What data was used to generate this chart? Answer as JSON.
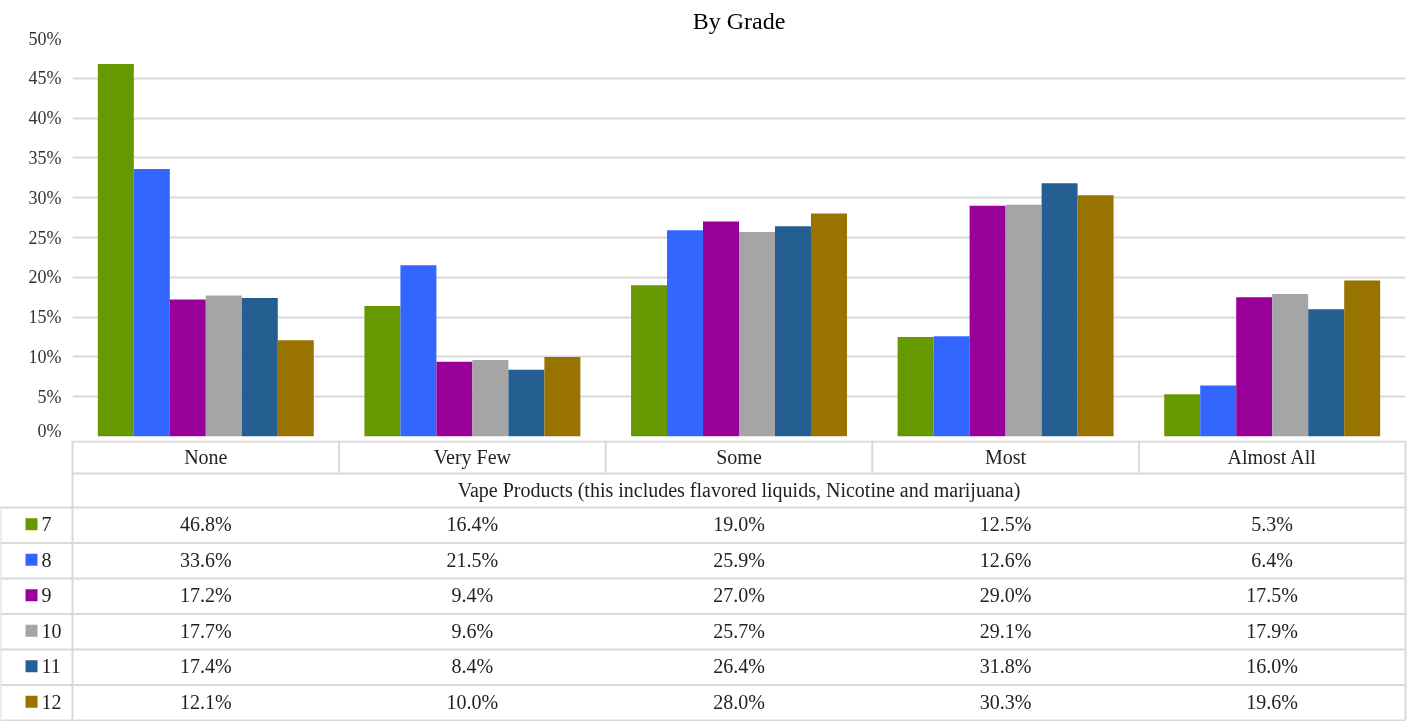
{
  "chart_data": {
    "type": "bar",
    "title": "By Grade",
    "xlabel": "Vape Products (this includes flavored liquids, Nicotine and marijuana)",
    "categories": [
      "None",
      "Very Few",
      "Some",
      "Most",
      "Almost All"
    ],
    "series": [
      {
        "name": "7",
        "color": "#669900",
        "values": [
          46.8,
          16.4,
          19.0,
          12.5,
          5.3
        ],
        "value_labels": [
          "46.8%",
          "16.4%",
          "19.0%",
          "12.5%",
          "5.3%"
        ]
      },
      {
        "name": "8",
        "color": "#3366ff",
        "values": [
          33.6,
          21.5,
          25.9,
          12.6,
          6.4
        ],
        "value_labels": [
          "33.6%",
          "21.5%",
          "25.9%",
          "12.6%",
          "6.4%"
        ]
      },
      {
        "name": "9",
        "color": "#990099",
        "values": [
          17.2,
          9.4,
          27.0,
          29.0,
          17.5
        ],
        "value_labels": [
          "17.2%",
          "9.4%",
          "27.0%",
          "29.0%",
          "17.5%"
        ]
      },
      {
        "name": "10",
        "color": "#a5a5a5",
        "values": [
          17.7,
          9.6,
          25.7,
          29.1,
          17.9
        ],
        "value_labels": [
          "17.7%",
          "9.6%",
          "25.7%",
          "29.1%",
          "17.9%"
        ]
      },
      {
        "name": "11",
        "color": "#255e91",
        "values": [
          17.4,
          8.4,
          26.4,
          31.8,
          16.0
        ],
        "value_labels": [
          "17.4%",
          "8.4%",
          "26.4%",
          "31.8%",
          "16.0%"
        ]
      },
      {
        "name": "12",
        "color": "#997300",
        "values": [
          12.1,
          10.0,
          28.0,
          30.3,
          19.6
        ],
        "value_labels": [
          "12.1%",
          "10.0%",
          "28.0%",
          "30.3%",
          "19.6%"
        ]
      }
    ],
    "ylim": [
      0,
      50
    ],
    "yticks": [
      {
        "value": 0,
        "label": "0%"
      },
      {
        "value": 5,
        "label": "5%"
      },
      {
        "value": 10,
        "label": "10%"
      },
      {
        "value": 15,
        "label": "15%"
      },
      {
        "value": 20,
        "label": "20%"
      },
      {
        "value": 25,
        "label": "25%"
      },
      {
        "value": 30,
        "label": "30%"
      },
      {
        "value": 35,
        "label": "35%"
      },
      {
        "value": 40,
        "label": "40%"
      },
      {
        "value": 45,
        "label": "45%"
      },
      {
        "value": 50,
        "label": "50%"
      }
    ],
    "grid": "y",
    "legend": "bottom left"
  }
}
